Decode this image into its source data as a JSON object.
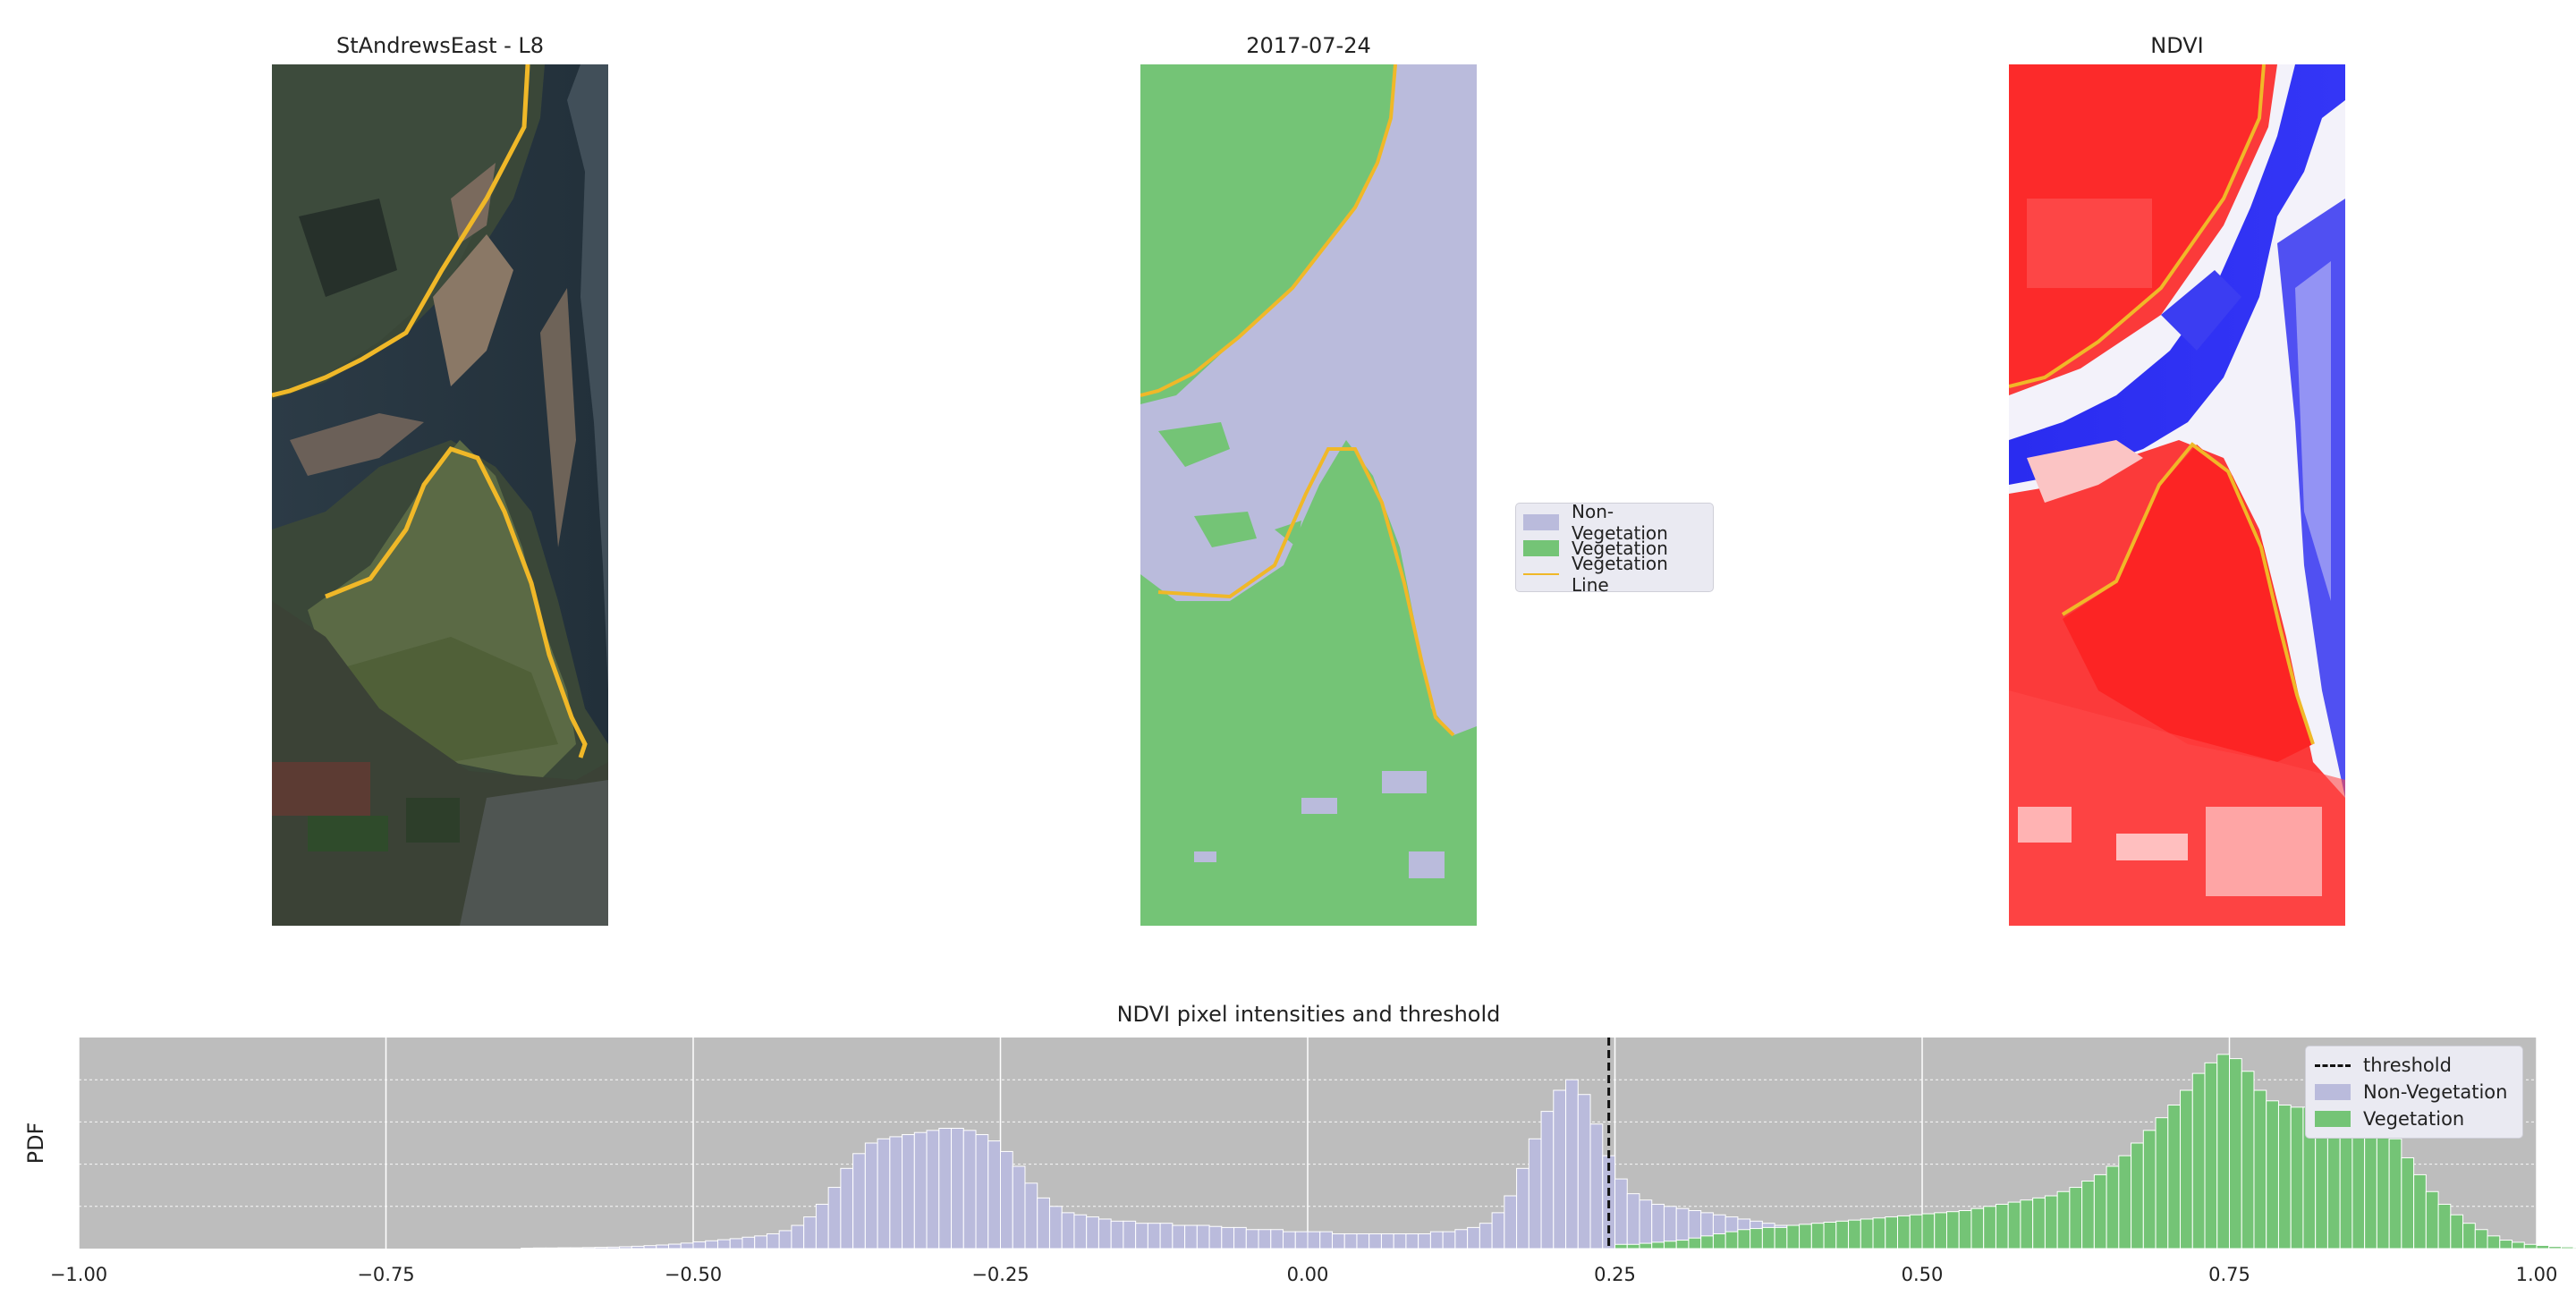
{
  "panels": [
    {
      "title": "StAndrewsEast - L8",
      "kind": "rgb-image"
    },
    {
      "title": "2017-07-24",
      "kind": "classification"
    },
    {
      "title": "NDVI",
      "kind": "ndvi-image"
    }
  ],
  "classification_legend": [
    {
      "label": "Non-Vegetation",
      "type": "patch",
      "color": "#babbdc"
    },
    {
      "label": "Vegetation",
      "type": "patch",
      "color": "#74c476"
    },
    {
      "label": "Vegetation Line",
      "type": "line",
      "color": "#f0b828"
    }
  ],
  "chart_data": {
    "type": "bar",
    "title": "NDVI pixel intensities and threshold",
    "xlabel": "",
    "ylabel": "PDF",
    "xlim": [
      -1.0,
      1.0
    ],
    "xticks": [
      "−1.00",
      "−0.75",
      "−0.50",
      "−0.25",
      "0.00",
      "0.25",
      "0.50",
      "0.75",
      "1.00"
    ],
    "xtick_values": [
      -1.0,
      -0.75,
      -0.5,
      -0.25,
      0.0,
      0.25,
      0.5,
      0.75,
      1.0
    ],
    "grid": true,
    "background": "#bdbdbd",
    "legend_position": "top-right",
    "threshold": {
      "label": "threshold",
      "value": 0.245
    },
    "bin_width": 0.01,
    "series": [
      {
        "name": "Non-Vegetation",
        "color": "#babbdc",
        "x_start": -0.64,
        "values": [
          0.002,
          0.003,
          0.003,
          0.004,
          0.004,
          0.005,
          0.006,
          0.007,
          0.009,
          0.011,
          0.014,
          0.017,
          0.021,
          0.026,
          0.032,
          0.037,
          0.042,
          0.047,
          0.054,
          0.06,
          0.07,
          0.085,
          0.11,
          0.15,
          0.21,
          0.29,
          0.38,
          0.45,
          0.5,
          0.52,
          0.53,
          0.54,
          0.55,
          0.56,
          0.57,
          0.57,
          0.56,
          0.54,
          0.51,
          0.46,
          0.39,
          0.31,
          0.24,
          0.2,
          0.17,
          0.16,
          0.15,
          0.14,
          0.13,
          0.13,
          0.12,
          0.12,
          0.12,
          0.11,
          0.11,
          0.11,
          0.105,
          0.1,
          0.1,
          0.09,
          0.09,
          0.09,
          0.08,
          0.08,
          0.08,
          0.08,
          0.07,
          0.07,
          0.07,
          0.07,
          0.07,
          0.07,
          0.07,
          0.07,
          0.08,
          0.08,
          0.09,
          0.1,
          0.12,
          0.17,
          0.25,
          0.38,
          0.52,
          0.65,
          0.75,
          0.8,
          0.73,
          0.59,
          0.44,
          0.33,
          0.26,
          0.23,
          0.21,
          0.2,
          0.19,
          0.18,
          0.17,
          0.16,
          0.15,
          0.14,
          0.13,
          0.12,
          0.11,
          0.1,
          0.09
        ]
      },
      {
        "name": "Vegetation",
        "color": "#74c476",
        "x_start": 0.25,
        "values": [
          0.02,
          0.02,
          0.025,
          0.03,
          0.035,
          0.04,
          0.05,
          0.06,
          0.07,
          0.08,
          0.09,
          0.095,
          0.1,
          0.1,
          0.11,
          0.115,
          0.12,
          0.125,
          0.13,
          0.135,
          0.14,
          0.145,
          0.15,
          0.155,
          0.16,
          0.165,
          0.17,
          0.175,
          0.18,
          0.19,
          0.2,
          0.21,
          0.22,
          0.23,
          0.24,
          0.25,
          0.27,
          0.29,
          0.32,
          0.35,
          0.39,
          0.44,
          0.5,
          0.56,
          0.62,
          0.68,
          0.75,
          0.83,
          0.88,
          0.92,
          0.9,
          0.84,
          0.75,
          0.7,
          0.68,
          0.67,
          0.67,
          0.68,
          0.69,
          0.7,
          0.7,
          0.66,
          0.6,
          0.52,
          0.43,
          0.35,
          0.27,
          0.21,
          0.16,
          0.12,
          0.09,
          0.06,
          0.04,
          0.03,
          0.02,
          0.015,
          0.01,
          0.008,
          0.005,
          0.003,
          0.002
        ]
      }
    ]
  }
}
